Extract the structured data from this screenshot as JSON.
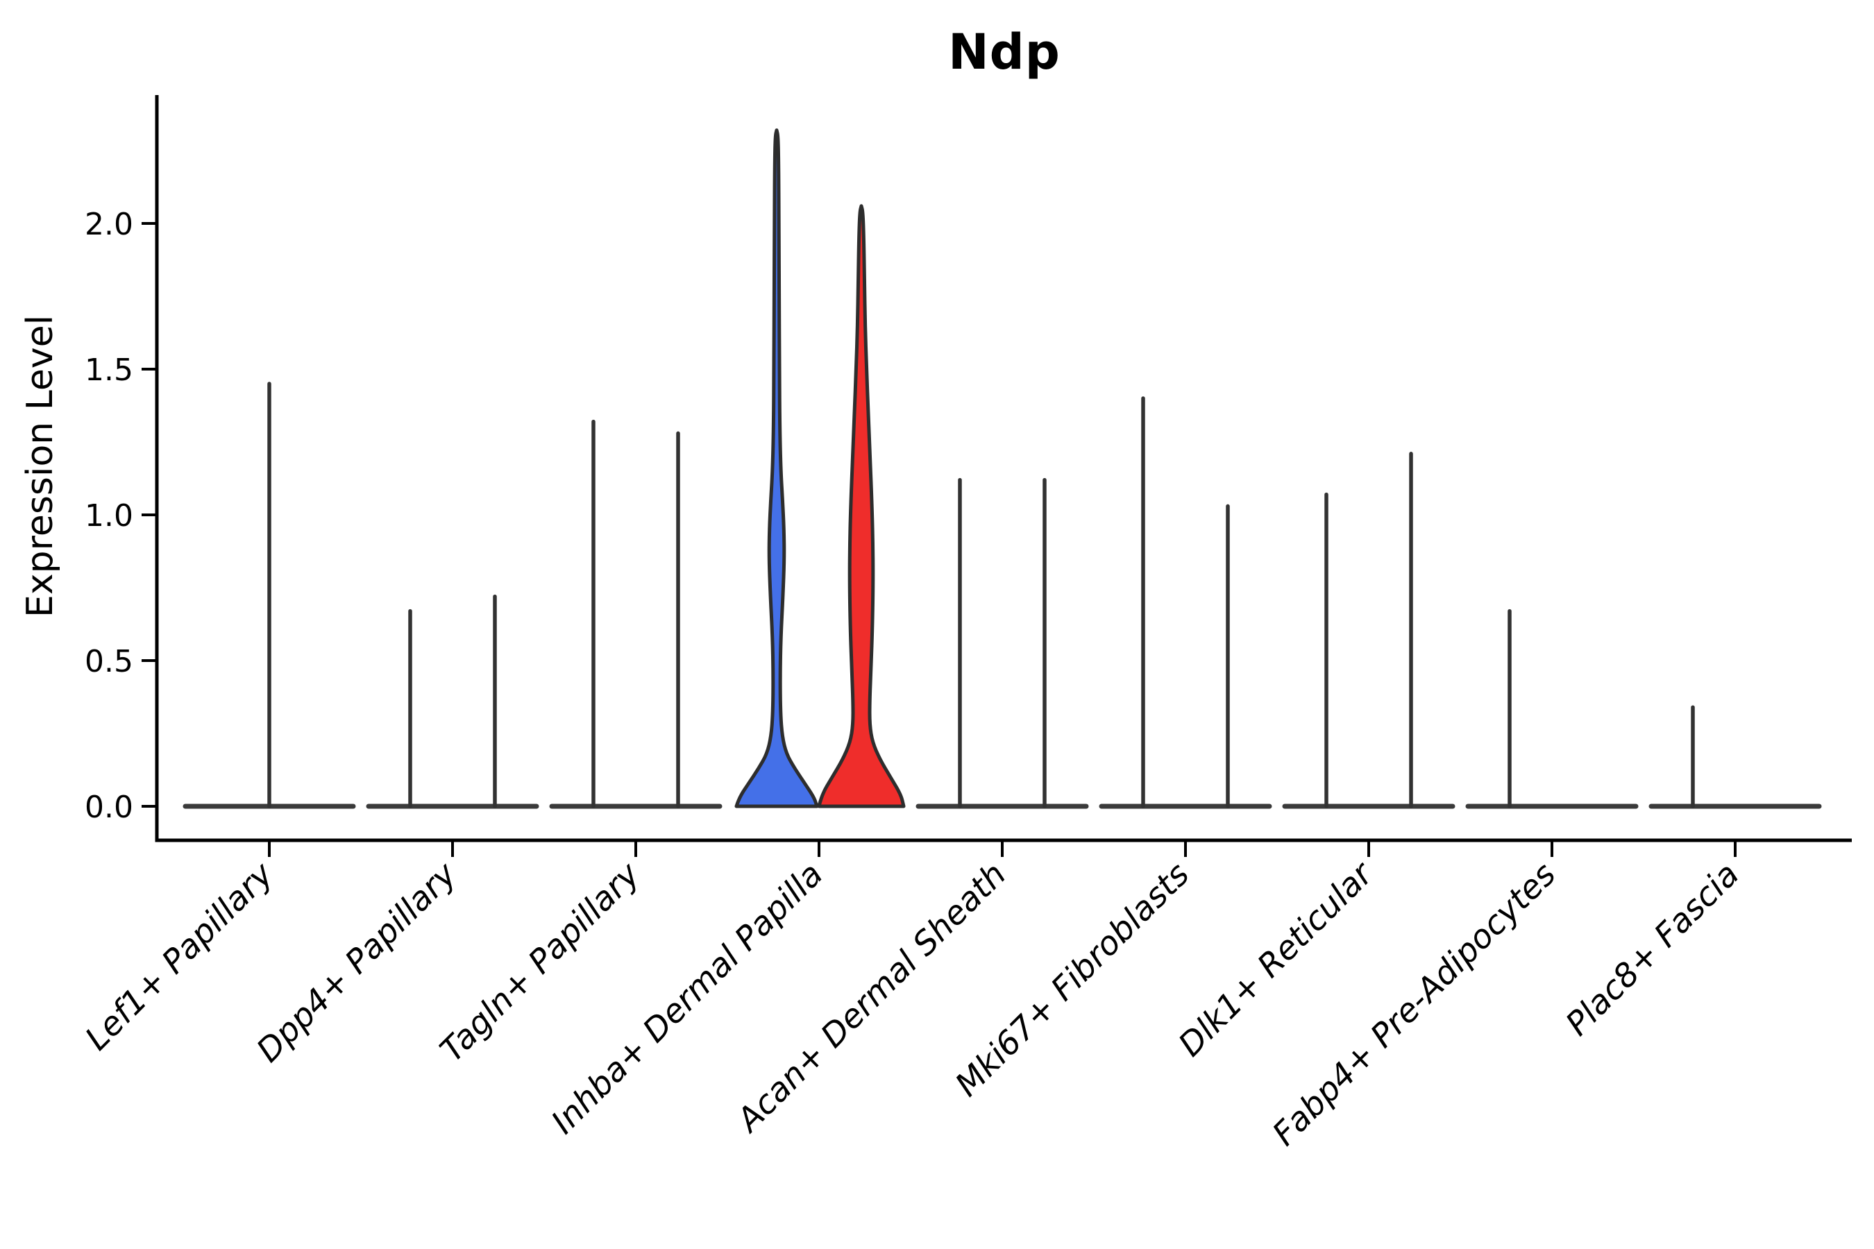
{
  "chart_data": {
    "type": "violin",
    "title": "Ndp",
    "ylabel": "Expression Level",
    "legend": "none",
    "grid": false,
    "ylim": [
      -0.117,
      2.44
    ],
    "ytick_values": [
      0.0,
      0.5,
      1.0,
      1.5,
      2.0
    ],
    "ytick_labels": [
      "0.0",
      "0.5",
      "1.0",
      "1.5",
      "2.0"
    ],
    "colors": {
      "split_left_fill": "#4470E8",
      "split_right_fill": "#EF2D2B",
      "violin_outline": "#2D2D2D",
      "flat_base_line": "#3A3A3A",
      "spike_line": "#323232",
      "axis": "#000000"
    },
    "categories": [
      {
        "label": "Lef1+ Papillary",
        "violins": [
          {
            "position": "center",
            "kind": "spike",
            "peak": 1.45
          }
        ]
      },
      {
        "label": "Dpp4+ Papillary",
        "violins": [
          {
            "position": "left",
            "kind": "spike",
            "peak": 0.67
          },
          {
            "position": "right",
            "kind": "spike",
            "peak": 0.72
          }
        ]
      },
      {
        "label": "Tagln+ Papillary",
        "violins": [
          {
            "position": "left",
            "kind": "spike",
            "peak": 1.32
          },
          {
            "position": "right",
            "kind": "spike",
            "peak": 1.28
          }
        ]
      },
      {
        "label": "Inhba+ Dermal Papilla",
        "violins": [
          {
            "position": "left",
            "kind": "density",
            "peak": 2.32,
            "fill": "#4470E8",
            "profile": [
              [
                0,
                58
              ],
              [
                0.03,
                54
              ],
              [
                0.08,
                40
              ],
              [
                0.13,
                26
              ],
              [
                0.18,
                14
              ],
              [
                0.24,
                8
              ],
              [
                0.32,
                5.5
              ],
              [
                0.45,
                5
              ],
              [
                0.58,
                6
              ],
              [
                0.72,
                9
              ],
              [
                0.85,
                11
              ],
              [
                0.95,
                10.5
              ],
              [
                1.05,
                8.5
              ],
              [
                1.15,
                6
              ],
              [
                1.3,
                4.5
              ],
              [
                1.5,
                4
              ],
              [
                1.75,
                3.6
              ],
              [
                2.0,
                3.2
              ],
              [
                2.2,
                2.8
              ],
              [
                2.3,
                2
              ],
              [
                2.32,
                0
              ]
            ]
          },
          {
            "position": "right",
            "kind": "density",
            "peak": 2.06,
            "fill": "#EF2D2B",
            "profile": [
              [
                0,
                61
              ],
              [
                0.04,
                57
              ],
              [
                0.1,
                42
              ],
              [
                0.16,
                27
              ],
              [
                0.22,
                16
              ],
              [
                0.28,
                12
              ],
              [
                0.36,
                12
              ],
              [
                0.48,
                14
              ],
              [
                0.62,
                16
              ],
              [
                0.78,
                17
              ],
              [
                0.92,
                16.5
              ],
              [
                1.05,
                15
              ],
              [
                1.2,
                12.5
              ],
              [
                1.35,
                10
              ],
              [
                1.5,
                7.5
              ],
              [
                1.65,
                5.5
              ],
              [
                1.8,
                4.5
              ],
              [
                1.95,
                3.5
              ],
              [
                2.04,
                2.2
              ],
              [
                2.06,
                0
              ]
            ]
          }
        ]
      },
      {
        "label": "Acan+ Dermal Sheath",
        "violins": [
          {
            "position": "left",
            "kind": "spike",
            "peak": 1.12
          },
          {
            "position": "right",
            "kind": "spike",
            "peak": 1.12
          }
        ]
      },
      {
        "label": "Mki67+ Fibroblasts",
        "violins": [
          {
            "position": "left",
            "kind": "spike",
            "peak": 1.4
          },
          {
            "position": "right",
            "kind": "spike",
            "peak": 1.03
          }
        ]
      },
      {
        "label": "Dlk1+ Reticular",
        "violins": [
          {
            "position": "left",
            "kind": "spike",
            "peak": 1.07
          },
          {
            "position": "right",
            "kind": "spike",
            "peak": 1.21
          }
        ]
      },
      {
        "label": "Fabp4+ Pre-Adipocytes",
        "violins": [
          {
            "position": "left",
            "kind": "spike",
            "peak": 0.67
          },
          {
            "position": "right",
            "kind": "flat",
            "peak": 0
          }
        ]
      },
      {
        "label": "Plac8+ Fascia",
        "violins": [
          {
            "position": "left",
            "kind": "spike",
            "peak": 0.34
          },
          {
            "position": "right",
            "kind": "flat",
            "peak": 0
          }
        ]
      }
    ]
  }
}
